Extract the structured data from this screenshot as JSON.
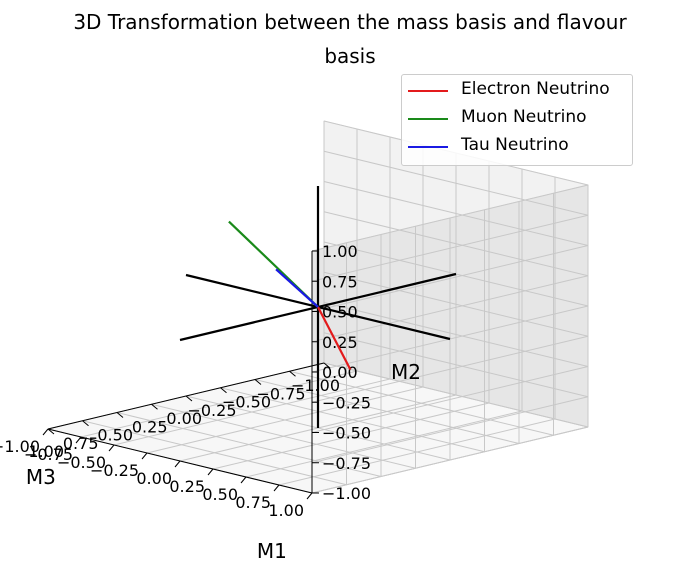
{
  "chart_data": {
    "type": "line3d",
    "title": "3D Transformation between the mass basis and flavour basis",
    "title_lines": [
      "3D Transformation between the mass basis and flavour",
      "basis"
    ],
    "axes": {
      "x": {
        "label": "M1",
        "ticks": [
          "−1.00",
          "−0.75",
          "−0.50",
          "−0.25",
          "0.00",
          "0.25",
          "0.50",
          "0.75",
          "1.00"
        ],
        "range": [
          -1,
          1
        ]
      },
      "y": {
        "label": "M3",
        "ticks": [
          "−1.00",
          "−0.75",
          "−0.50",
          "−0.25",
          "0.00",
          "0.25",
          "0.50",
          "0.75",
          "1.00"
        ],
        "range": [
          -1,
          1
        ]
      },
      "z": {
        "label": "M2",
        "ticks": [
          "−1.00",
          "−0.75",
          "−0.50",
          "−0.25",
          "0.00",
          "0.25",
          "0.50",
          "0.75",
          "1.00"
        ],
        "range": [
          -1,
          1
        ]
      }
    },
    "grid": true,
    "basis_lines": [
      {
        "axis": "M1",
        "from": [
          -1,
          0,
          0
        ],
        "to": [
          1,
          0,
          0
        ],
        "color": "#000000"
      },
      {
        "axis": "M3",
        "from": [
          0,
          -1,
          0
        ],
        "to": [
          0,
          1,
          0
        ],
        "color": "#000000"
      },
      {
        "axis": "M2",
        "from": [
          0,
          0,
          -1
        ],
        "to": [
          0,
          0,
          1
        ],
        "color": "#000000"
      }
    ],
    "series": [
      {
        "name": "Electron Neutrino",
        "color": "#e31a1c",
        "from": [
          0,
          0,
          0
        ],
        "to": [
          0.82,
          0.55,
          -0.15
        ]
      },
      {
        "name": "Muon Neutrino",
        "color": "#1a8a1a",
        "from": [
          0,
          0,
          0
        ],
        "to": [
          -0.1,
          0.55,
          0.83
        ]
      },
      {
        "name": "Tau Neutrino",
        "color": "#1a1ae3",
        "from": [
          0,
          0,
          0
        ],
        "to": [
          -0.37,
          -0.05,
          0.2
        ]
      }
    ],
    "legend": {
      "position": "top-right",
      "entries": [
        "Electron Neutrino",
        "Muon Neutrino",
        "Tau Neutrino"
      ]
    }
  }
}
